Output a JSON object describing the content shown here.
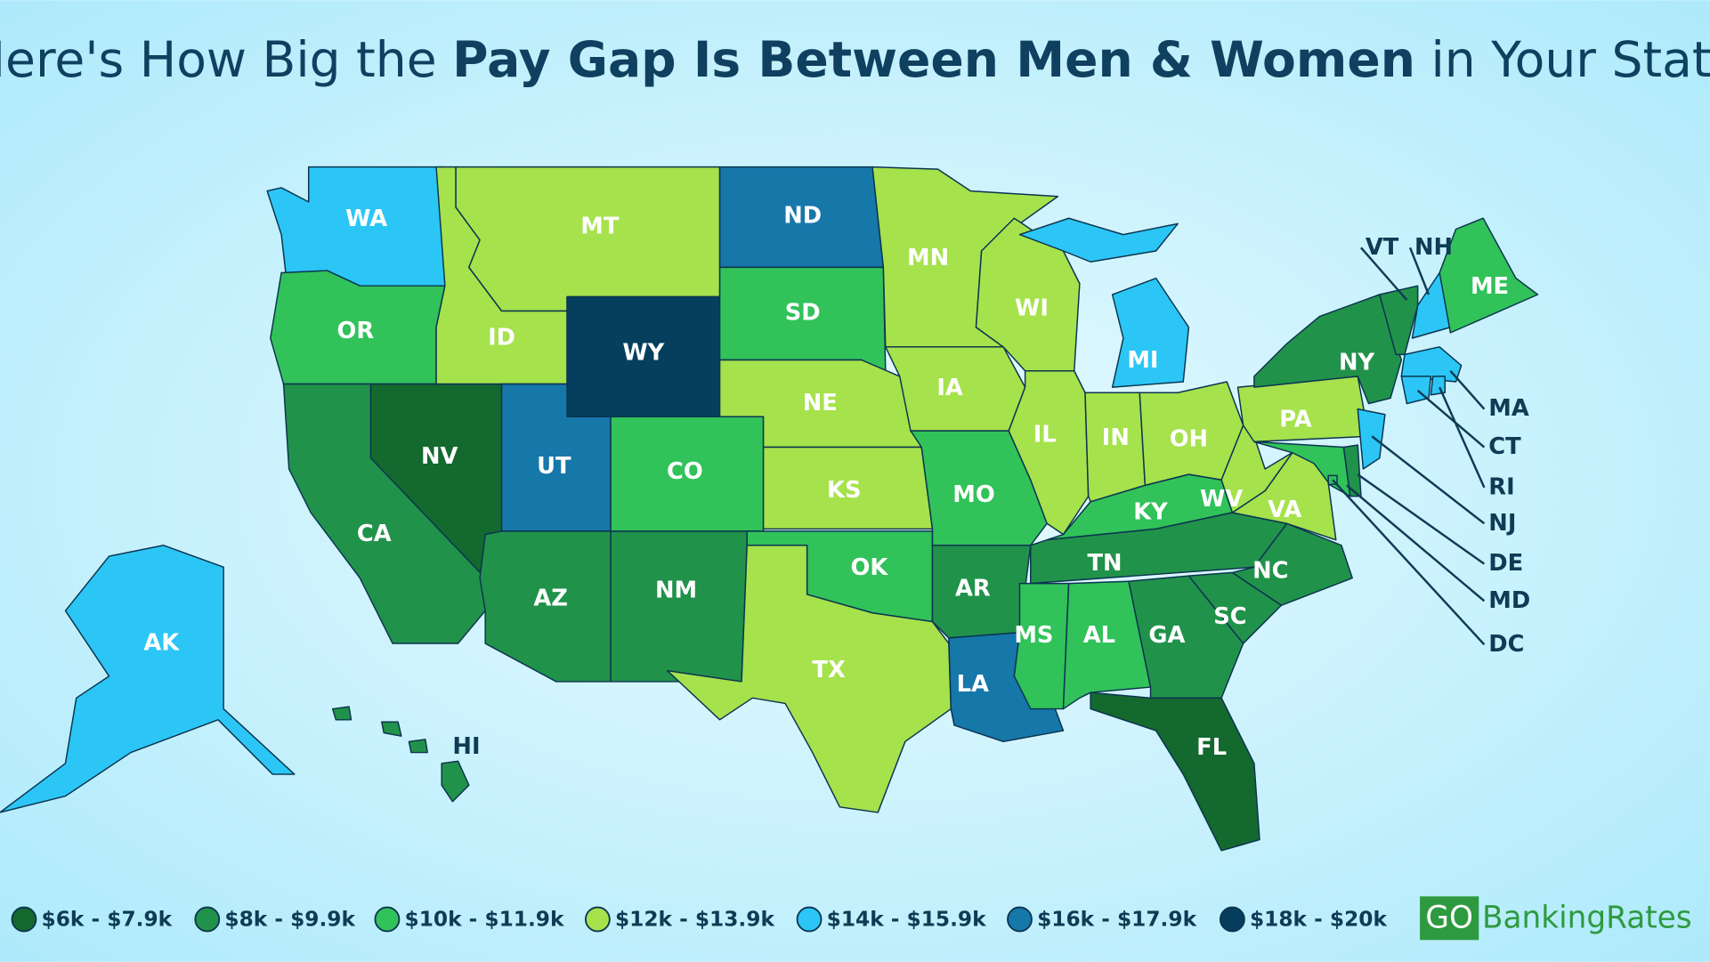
{
  "title": {
    "parts": [
      "Here's How Big the",
      "Pay Gap Is Between Men & Women",
      "in Your State"
    ]
  },
  "legend": [
    {
      "label": "$6k - $7.9k",
      "color": "#13692e"
    },
    {
      "label": "$8k - $9.9k",
      "color": "#21924a"
    },
    {
      "label": "$10k - $11.9k",
      "color": "#31c25a"
    },
    {
      "label": "$12k - $13.9k",
      "color": "#a5e24c"
    },
    {
      "label": "$14k - $15.9k",
      "color": "#2bc6f6"
    },
    {
      "label": "$16k - $17.9k",
      "color": "#1677a9"
    },
    {
      "label": "$18k - $20k",
      "color": "#063f5d"
    }
  ],
  "states": [
    {
      "label": "WA",
      "color": "#2bc6f6"
    },
    {
      "label": "OR",
      "color": "#31c25a"
    },
    {
      "label": "CA",
      "color": "#21924a"
    },
    {
      "label": "NV",
      "color": "#13692e"
    },
    {
      "label": "ID",
      "color": "#a5e24c"
    },
    {
      "label": "MT",
      "color": "#a5e24c"
    },
    {
      "label": "WY",
      "color": "#063f5d"
    },
    {
      "label": "UT",
      "color": "#1677a9"
    },
    {
      "label": "AZ",
      "color": "#21924a"
    },
    {
      "label": "NM",
      "color": "#21924a"
    },
    {
      "label": "CO",
      "color": "#31c25a"
    },
    {
      "label": "ND",
      "color": "#1677a9"
    },
    {
      "label": "SD",
      "color": "#31c25a"
    },
    {
      "label": "NE",
      "color": "#a5e24c"
    },
    {
      "label": "KS",
      "color": "#a5e24c"
    },
    {
      "label": "OK",
      "color": "#31c25a"
    },
    {
      "label": "TX",
      "color": "#a5e24c"
    },
    {
      "label": "MN",
      "color": "#a5e24c"
    },
    {
      "label": "IA",
      "color": "#a5e24c"
    },
    {
      "label": "MO",
      "color": "#31c25a"
    },
    {
      "label": "AR",
      "color": "#21924a"
    },
    {
      "label": "LA",
      "color": "#1677a9"
    },
    {
      "label": "WI",
      "color": "#a5e24c"
    },
    {
      "label": "IL",
      "color": "#a5e24c"
    },
    {
      "label": "MI",
      "color": "#2bc6f6"
    },
    {
      "label": "IN",
      "color": "#a5e24c"
    },
    {
      "label": "OH",
      "color": "#a5e24c"
    },
    {
      "label": "KY",
      "color": "#31c25a"
    },
    {
      "label": "TN",
      "color": "#21924a"
    },
    {
      "label": "MS",
      "color": "#31c25a"
    },
    {
      "label": "AL",
      "color": "#31c25a"
    },
    {
      "label": "GA",
      "color": "#21924a"
    },
    {
      "label": "FL",
      "color": "#13692e"
    },
    {
      "label": "SC",
      "color": "#21924a"
    },
    {
      "label": "NC",
      "color": "#21924a"
    },
    {
      "label": "VA",
      "color": "#a5e24c"
    },
    {
      "label": "WV",
      "color": "#a5e24c"
    },
    {
      "label": "PA",
      "color": "#a5e24c"
    },
    {
      "label": "NY",
      "color": "#21924a"
    },
    {
      "label": "NJ",
      "color": "#2bc6f6"
    },
    {
      "label": "DE",
      "color": "#21924a"
    },
    {
      "label": "MD",
      "color": "#31c25a"
    },
    {
      "label": "DC",
      "color": "#31c25a"
    },
    {
      "label": "VT",
      "color": "#21924a"
    },
    {
      "label": "NH",
      "color": "#2bc6f6"
    },
    {
      "label": "ME",
      "color": "#31c25a"
    },
    {
      "label": "MA",
      "color": "#2bc6f6"
    },
    {
      "label": "CT",
      "color": "#2bc6f6"
    },
    {
      "label": "RI",
      "color": "#2bc6f6"
    },
    {
      "label": "AK",
      "color": "#2bc6f6"
    },
    {
      "label": "HI",
      "color": "#21924a"
    }
  ],
  "logo": {
    "left": "GO",
    "right": "BankingRates"
  }
}
